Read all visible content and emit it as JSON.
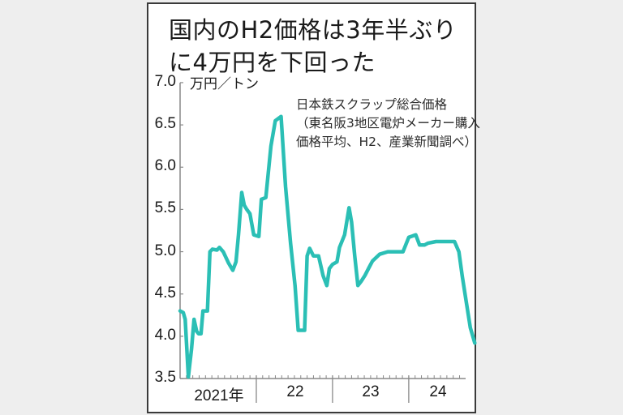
{
  "title": {
    "line1": "国内のH2価格は3年半ぶり",
    "line2": "に4万円を下回った"
  },
  "unit_label": "万円／トン",
  "note": {
    "line1": "日本鉄スクラップ総合価格",
    "line2": "（東名阪3地区電炉メーカー購入",
    "line3": "価格平均、H2、産業新聞調べ）"
  },
  "y_ticks": [
    "7.0",
    "6.5",
    "6.0",
    "5.5",
    "5.0",
    "4.5",
    "4.0",
    "3.5"
  ],
  "x_ticks": [
    "2021年",
    "22",
    "23",
    "24"
  ],
  "colors": {
    "line": "#2bbfb5",
    "axis": "#888888",
    "frame": "#3a3a3a",
    "background": "#eeeeee"
  },
  "chart_data": {
    "type": "line",
    "title": "国内のH2価格は3年半ぶりに4万円を下回った",
    "subtitle": "日本鉄スクラップ総合価格（東名阪3地区電炉メーカー購入価格平均、H2、産業新聞調べ）",
    "xlabel": "",
    "ylabel": "万円／トン",
    "ylim": [
      3.5,
      7.0
    ],
    "yticks": [
      3.5,
      4.0,
      4.5,
      5.0,
      5.5,
      6.0,
      6.5,
      7.0
    ],
    "xticks": [
      "2021年",
      "22",
      "23",
      "24"
    ],
    "x_unit": "months since Jan 2021",
    "grid": false,
    "legend": null,
    "series": [
      {
        "name": "日本鉄スクラップ総合価格 H2",
        "x": [
          0,
          0.5,
          0.8,
          1.3,
          1.8,
          2.2,
          2.6,
          2.9,
          3.3,
          3.6,
          4.3,
          4.7,
          5.1,
          5.8,
          6.2,
          6.8,
          7.6,
          8.3,
          8.8,
          9.2,
          9.7,
          10.1,
          10.5,
          11.0,
          11.6,
          12.4,
          12.8,
          13.5,
          14.3,
          15.0,
          15.9,
          16.6,
          17.4,
          18.1,
          18.6,
          19.6,
          20.0,
          20.4,
          21.0,
          21.8,
          22.5,
          23.1,
          23.5,
          24.0,
          24.7,
          25.1,
          25.9,
          26.6,
          27.0,
          27.5,
          28.0,
          28.5,
          29.1,
          29.8,
          30.3,
          31.4,
          32.7,
          33.6,
          35.1,
          36.0,
          37.1,
          37.7,
          38.5,
          39.0,
          40.3,
          43.2,
          43.9,
          44.4,
          45.0,
          45.7,
          46.4
        ],
        "values": [
          4.3,
          4.28,
          4.2,
          3.52,
          3.85,
          4.2,
          4.06,
          4.03,
          4.03,
          4.3,
          4.3,
          5.0,
          5.03,
          5.02,
          5.05,
          5.0,
          4.87,
          4.78,
          4.88,
          5.2,
          5.7,
          5.55,
          5.5,
          5.45,
          5.2,
          5.18,
          5.62,
          5.64,
          6.25,
          6.55,
          6.6,
          5.77,
          5.1,
          4.6,
          4.07,
          4.07,
          4.95,
          5.04,
          4.95,
          4.95,
          4.72,
          4.6,
          4.8,
          4.85,
          4.88,
          5.05,
          5.2,
          5.52,
          5.35,
          4.95,
          4.6,
          4.65,
          4.72,
          4.82,
          4.89,
          4.97,
          5.0,
          5.0,
          5.0,
          5.17,
          5.2,
          5.08,
          5.08,
          5.1,
          5.12,
          5.12,
          5.0,
          4.72,
          4.43,
          4.1,
          3.92
        ]
      }
    ],
    "annotations": []
  }
}
